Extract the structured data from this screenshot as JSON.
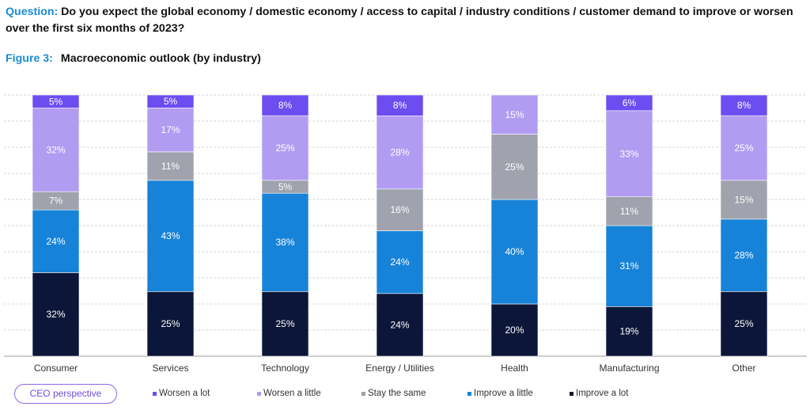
{
  "header": {
    "question_label": "Question:",
    "question_text": "Do you expect the global economy / domestic economy / access to capital / industry conditions / customer demand to improve or worsen over the first six months of 2023?",
    "figure_label": "Figure 3:",
    "figure_title": "Macroeconomic outlook (by industry)"
  },
  "badge": {
    "label": "CEO perspective"
  },
  "colors": {
    "worsen_a_lot": "#6b4df0",
    "worsen_a_little": "#b19cf2",
    "stay_the_same": "#a0a2ad",
    "improve_a_little": "#1783d8",
    "improve_a_lot": "#0c1638"
  },
  "legend": [
    {
      "label": "Worsen a lot",
      "color": "#6b4df0"
    },
    {
      "label": "Worsen a little",
      "color": "#b19cf2"
    },
    {
      "label": "Stay the same",
      "color": "#a0a2ad"
    },
    {
      "label": "Improve a little",
      "color": "#1783d8"
    },
    {
      "label": "Improve a lot",
      "color": "#0c1638"
    }
  ],
  "chart_data": {
    "type": "bar",
    "stacked": true,
    "categories": [
      "Consumer",
      "Services",
      "Technology",
      "Energy / Utilities",
      "Health",
      "Manufacturing",
      "Other"
    ],
    "series": [
      {
        "name": "Improve a lot",
        "values": [
          32,
          25,
          25,
          24,
          20,
          19,
          25
        ],
        "labels": [
          "32%",
          "25%",
          "25%",
          "24%",
          "20%",
          "19%",
          "25%"
        ]
      },
      {
        "name": "Improve a little",
        "values": [
          24,
          43,
          38,
          24,
          40,
          31,
          28
        ],
        "labels": [
          "24%",
          "43%",
          "38%",
          "24%",
          "40%",
          "31%",
          "28%"
        ]
      },
      {
        "name": "Stay the same",
        "values": [
          7,
          11,
          5,
          16,
          25,
          11,
          15
        ],
        "labels": [
          "7%",
          "11%",
          "5%",
          "16%",
          "25%",
          "11%",
          "15%"
        ]
      },
      {
        "name": "Worsen a little",
        "values": [
          32,
          17,
          25,
          28,
          15,
          33,
          25
        ],
        "labels": [
          "32%",
          "17%",
          "25%",
          "28%",
          "15%",
          "33%",
          "25%"
        ]
      },
      {
        "name": "Worsen a lot",
        "values": [
          5,
          5,
          8,
          8,
          0,
          6,
          8
        ],
        "labels": [
          "5%",
          "5%",
          "8%",
          "8%",
          "",
          "6%",
          "8%"
        ]
      }
    ],
    "ylim": [
      0,
      100
    ],
    "grid": true,
    "legend_position": "bottom"
  }
}
